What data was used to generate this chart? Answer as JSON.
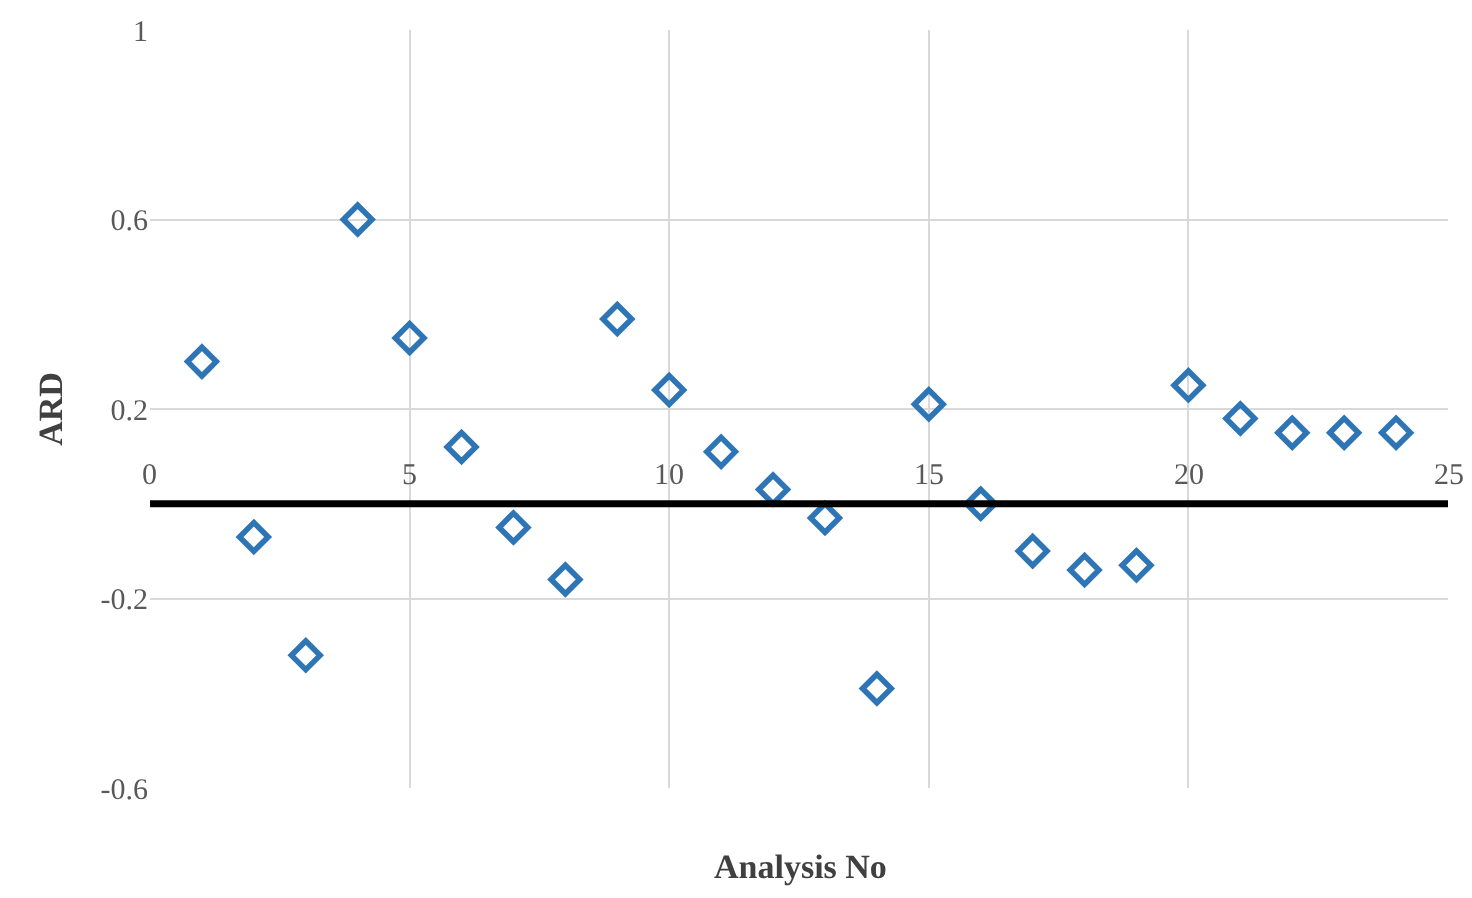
{
  "chart_data": {
    "type": "scatter",
    "xlabel": "Analysis No",
    "ylabel": "ARD",
    "x": [
      1,
      2,
      3,
      4,
      5,
      6,
      7,
      8,
      9,
      10,
      11,
      12,
      13,
      14,
      15,
      16,
      17,
      18,
      19,
      20,
      21,
      22,
      23,
      24
    ],
    "series": [
      {
        "color": "#2e75b6",
        "values": [
          0.3,
          -0.07,
          -0.32,
          0.6,
          0.35,
          0.12,
          -0.05,
          -0.16,
          0.39,
          0.24,
          0.11,
          0.03,
          -0.03,
          -0.39,
          0.21,
          0.0,
          -0.1,
          -0.14,
          -0.13,
          0.25,
          0.18,
          0.15,
          0.15,
          0.15
        ]
      }
    ],
    "xlim": [
      0,
      25
    ],
    "xticks": [
      0,
      5,
      10,
      15,
      20,
      25
    ],
    "ylim": [
      -0.6,
      1
    ],
    "yticks": [
      -0.6,
      -0.2,
      0.2,
      0.6,
      1
    ],
    "grid": true,
    "marker": "diamond"
  }
}
